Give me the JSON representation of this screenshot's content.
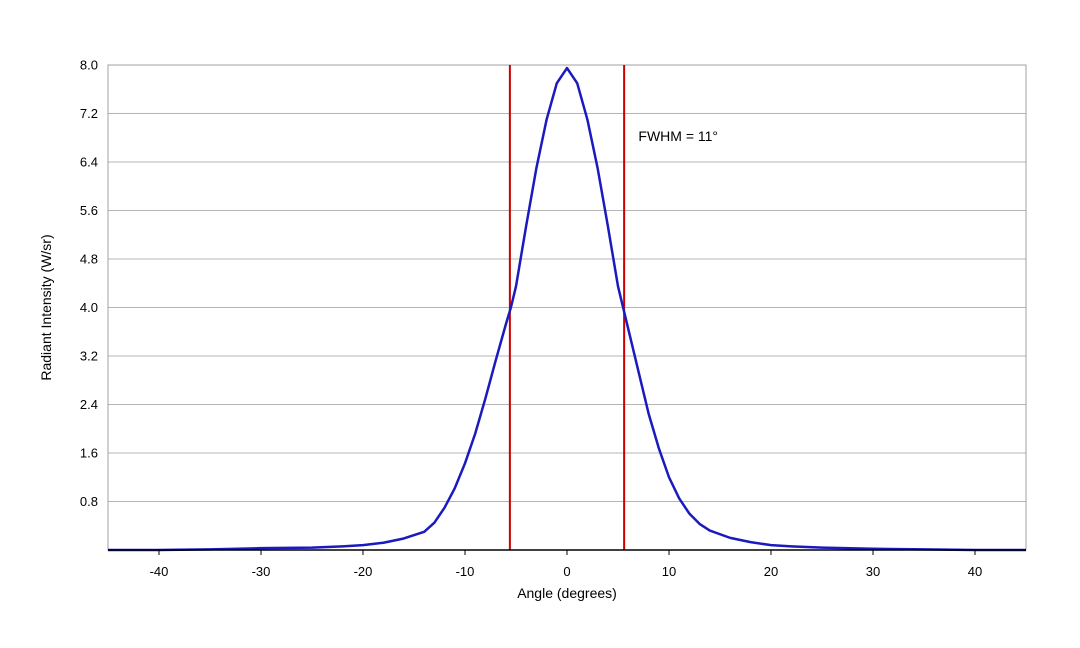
{
  "chart_data": {
    "type": "line",
    "title": "",
    "xlabel": "Angle (degrees)",
    "ylabel": "Radiant Intensity (W/sr)",
    "xlim": [
      -45,
      45
    ],
    "ylim": [
      0,
      8.0
    ],
    "x_ticks": [
      -40,
      -30,
      -20,
      -10,
      0,
      10,
      20,
      30,
      40
    ],
    "x_tick_labels": [
      "-40",
      "-30",
      "-20",
      "-10",
      "0",
      "10",
      "20",
      "30",
      "40"
    ],
    "y_ticks": [
      0.8,
      1.6,
      2.4,
      3.2,
      4.0,
      4.8,
      5.6,
      6.4,
      7.2,
      8.0
    ],
    "y_tick_labels": [
      "0.8",
      "1.6",
      "2.4",
      "3.2",
      "4.0",
      "4.8",
      "5.6",
      "6.4",
      "7.2",
      "8.0"
    ],
    "grid": "horizontal",
    "legend": "none",
    "series": [
      {
        "color": "#1a1abf",
        "x": [
          -45,
          -40,
          -35,
          -30,
          -25,
          -22,
          -20,
          -18,
          -16,
          -14,
          -13,
          -12,
          -11,
          -10,
          -9,
          -8,
          -7,
          -6,
          -5.5,
          -5,
          -4,
          -3,
          -2,
          -1,
          0,
          1,
          2,
          3,
          4,
          5,
          5.5,
          6,
          7,
          8,
          9,
          10,
          11,
          12,
          13,
          14,
          16,
          18,
          20,
          22,
          25,
          30,
          35,
          40,
          45
        ],
        "y": [
          0.0,
          0.0,
          0.01,
          0.03,
          0.04,
          0.06,
          0.08,
          0.12,
          0.19,
          0.3,
          0.45,
          0.7,
          1.02,
          1.43,
          1.92,
          2.5,
          3.12,
          3.72,
          4.0,
          4.35,
          5.35,
          6.3,
          7.1,
          7.7,
          7.95,
          7.7,
          7.1,
          6.3,
          5.35,
          4.35,
          4.0,
          3.65,
          2.95,
          2.25,
          1.68,
          1.2,
          0.85,
          0.6,
          0.43,
          0.32,
          0.2,
          0.13,
          0.08,
          0.06,
          0.04,
          0.02,
          0.01,
          0.0,
          0.0
        ]
      }
    ],
    "reference_lines": [
      {
        "orientation": "vertical",
        "x": -5.6,
        "color": "#cc0000"
      },
      {
        "orientation": "vertical",
        "x": 5.6,
        "color": "#cc0000"
      }
    ],
    "annotations": [
      {
        "text": "FWHM = 11°",
        "x": 7,
        "y": 6.75
      }
    ]
  }
}
